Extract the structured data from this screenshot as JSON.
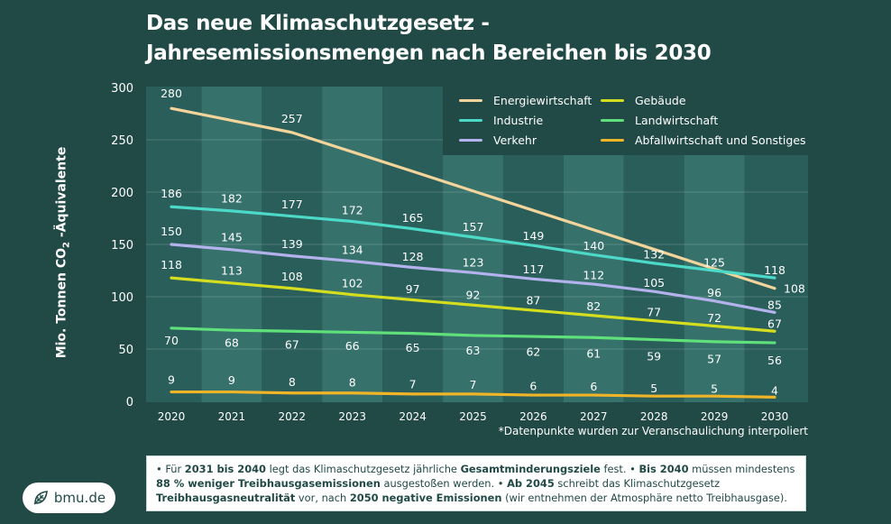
{
  "title_lines": [
    "Das neue Klimaschutzgesetz -",
    "Jahresemissionsmengen nach Bereichen bis 2030"
  ],
  "chart_data": {
    "type": "line",
    "title": "Das neue Klimaschutzgesetz - Jahresemissionsmengen nach Bereichen bis 2030",
    "xlabel": "",
    "ylabel": "Mio. Tonnen CO2-Äquivalente",
    "ylabel_main": "Mio. Tonnen CO",
    "ylabel_sub": "2",
    "ylabel_tail": " -Äquivalente",
    "ylim": [
      0,
      300
    ],
    "yticks": [
      0,
      50,
      100,
      150,
      200,
      250,
      300
    ],
    "grid": "horizontal",
    "legend_position": "top-right",
    "x": [
      "2020",
      "2021",
      "2022",
      "2023",
      "2024",
      "2025",
      "2026",
      "2027",
      "2028",
      "2029",
      "2030"
    ],
    "series": [
      {
        "name": "Energiewirtschaft",
        "color": "#f3d49a",
        "values": [
          280,
          268.5,
          257,
          238.4,
          219.8,
          201.1,
          182.5,
          163.9,
          145.3,
          126.6,
          108
        ],
        "labels": [
          "280",
          null,
          "257",
          null,
          null,
          null,
          null,
          null,
          null,
          null,
          "108"
        ]
      },
      {
        "name": "Industrie",
        "color": "#4dd9c7",
        "values": [
          186,
          182,
          177,
          172,
          165,
          157,
          149,
          140,
          132,
          125,
          118
        ]
      },
      {
        "name": "Verkehr",
        "color": "#b3b2ec",
        "values": [
          150,
          145,
          139,
          134,
          128,
          123,
          117,
          112,
          105,
          96,
          85
        ]
      },
      {
        "name": "Gebäude",
        "color": "#d4de1f",
        "values": [
          118,
          113,
          108,
          102,
          97,
          92,
          87,
          82,
          77,
          72,
          67
        ]
      },
      {
        "name": "Landwirtschaft",
        "color": "#5fe07a",
        "values": [
          70,
          68,
          67,
          66,
          65,
          63,
          62,
          61,
          59,
          57,
          56
        ]
      },
      {
        "name": "Abfallwirtschaft und Sonstiges",
        "color": "#f0b428",
        "values": [
          9,
          9,
          8,
          8,
          7,
          7,
          6,
          6,
          5,
          5,
          4
        ]
      }
    ],
    "footnote": "*Datenpunkte wurden zur Veranschaulichung interpoliert"
  },
  "info": {
    "segments": [
      {
        "t": "• Für ",
        "b": false
      },
      {
        "t": "2031 bis 2040",
        "b": true
      },
      {
        "t": " legt das Klimaschutzgesetz jährliche ",
        "b": false
      },
      {
        "t": "Gesamtminderungsziele",
        "b": true
      },
      {
        "t": " fest. • ",
        "b": false
      },
      {
        "t": "Bis 2040",
        "b": true
      },
      {
        "t": " müssen mindestens ",
        "b": false
      },
      {
        "t": "88 % weniger Treibhausgasemissionen",
        "b": true
      },
      {
        "t": " ausgestoßen werden. • ",
        "b": false
      },
      {
        "t": "Ab 2045",
        "b": true
      },
      {
        "t": " schreibt das Klimaschutzgesetz ",
        "b": false
      },
      {
        "t": "Treibhausgasneutralität",
        "b": true
      },
      {
        "t": " vor, nach ",
        "b": false
      },
      {
        "t": "2050 negative Emissionen",
        "b": true
      },
      {
        "t": " (wir entnehmen der Atmosphäre netto Treibhausgase).",
        "b": false
      }
    ]
  },
  "logo": {
    "icon": "leaf-icon",
    "text": "bmu.de"
  },
  "colors": {
    "background": "#214a47",
    "stripe_dark": "#2a5e5a",
    "stripe_light": "#36716b",
    "text": "#ffffff"
  }
}
